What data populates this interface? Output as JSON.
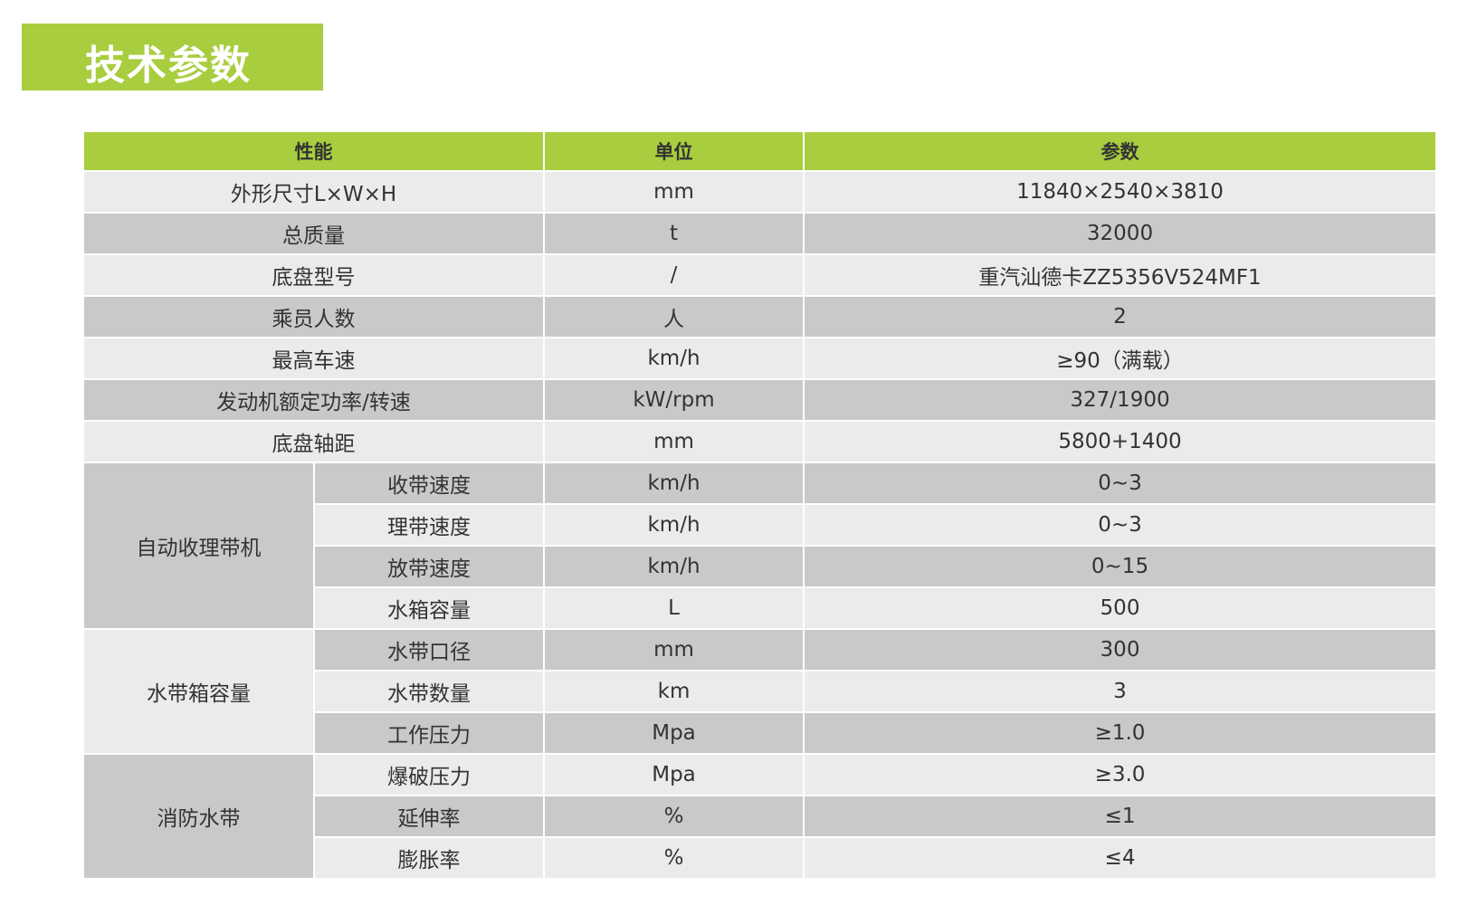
{
  "title": "技术参数",
  "headers": {
    "performance": "性能",
    "unit": "单位",
    "param": "参数"
  },
  "rows": [
    {
      "name": "外形尺寸L×W×H",
      "unit": "mm",
      "value": "11840×2540×3810"
    },
    {
      "name": "总质量",
      "unit": "t",
      "value": "32000"
    },
    {
      "name": "底盘型号",
      "unit": "/",
      "value": "重汽汕德卡ZZ5356V524MF1"
    },
    {
      "name": "乘员人数",
      "unit": "人",
      "value": "2"
    },
    {
      "name": "最高车速",
      "unit": "km/h",
      "value": "≥90（满载）"
    },
    {
      "name": "发动机额定功率/转速",
      "unit": "kW/rpm",
      "value": "327/1900"
    },
    {
      "name": "底盘轴距",
      "unit": "mm",
      "value": "5800+1400"
    }
  ],
  "groups": [
    {
      "name": "自动收理带机",
      "rows": [
        {
          "name": "收带速度",
          "unit": "km/h",
          "value": "0~3"
        },
        {
          "name": "理带速度",
          "unit": "km/h",
          "value": "0~3"
        },
        {
          "name": "放带速度",
          "unit": "km/h",
          "value": "0~15"
        },
        {
          "name": "水箱容量",
          "unit": "L",
          "value": "500"
        }
      ]
    },
    {
      "name": "水带箱容量",
      "rows": [
        {
          "name": "水带口径",
          "unit": "mm",
          "value": "300"
        },
        {
          "name": "水带数量",
          "unit": "km",
          "value": "3"
        },
        {
          "name": "工作压力",
          "unit": "Mpa",
          "value": "≥1.0"
        }
      ]
    },
    {
      "name": "消防水带",
      "rows": [
        {
          "name": "爆破压力",
          "unit": "Mpa",
          "value": "≥3.0"
        },
        {
          "name": "延伸率",
          "unit": "%",
          "value": "≤1"
        },
        {
          "name": "膨胀率",
          "unit": "%",
          "value": "≤4"
        }
      ]
    }
  ],
  "colors": {
    "accent": "#a8cd3e",
    "row_light": "#ebebeb",
    "row_dark": "#c9c9c9"
  }
}
